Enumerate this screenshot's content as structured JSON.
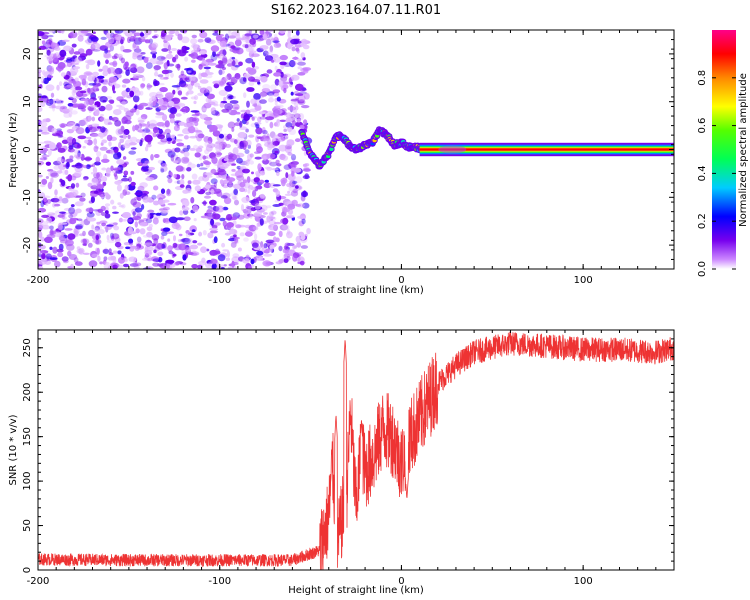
{
  "title": "S162.2023.164.07.11.R01",
  "chart_data": [
    {
      "type": "heatmap",
      "xlabel": "Height of straight line (km)",
      "ylabel": "Frequency (Hz)",
      "xlim": [
        -200,
        150
      ],
      "ylim": [
        -25,
        25
      ],
      "x_ticks": [
        -200,
        -100,
        0,
        100
      ],
      "y_ticks": [
        -20,
        -10,
        0,
        10,
        20
      ],
      "colorbar": {
        "label": "Normalized spectral amplitude",
        "range": [
          0,
          1
        ],
        "ticks": [
          "0.0",
          "0.2",
          "0.4",
          "0.6",
          "0.8"
        ],
        "colormap": "rainbow (white-violet-blue-cyan-green-yellow-red-magenta)"
      },
      "regions": [
        {
          "x": [
            -200,
            -52
          ],
          "description": "diffuse noise, amplitude 0.0-0.15"
        },
        {
          "x": [
            -55,
            10
          ],
          "description": "wandering narrow signal, amplitude 0.1-0.8"
        },
        {
          "x": [
            10,
            150
          ],
          "description": "steady narrow signal at 0 Hz, amplitude ~0.9"
        }
      ],
      "signal_trace": {
        "x": [
          -55,
          -50,
          -45,
          -40,
          -36,
          -32,
          -28,
          -24,
          -20,
          -16,
          -12,
          -8,
          -4,
          0,
          4,
          8,
          12,
          20,
          40,
          80,
          120,
          150
        ],
        "y": [
          3.5,
          -1,
          -3.5,
          -1,
          3,
          2.5,
          0.5,
          0,
          1,
          1.5,
          4,
          3,
          1,
          1.5,
          0.5,
          0.5,
          0,
          0,
          0,
          0,
          0,
          0
        ]
      }
    },
    {
      "type": "line",
      "xlabel": "Height of straight line (km)",
      "ylabel": "SNR (10 * v/v)",
      "xlim": [
        -200,
        150
      ],
      "ylim": [
        0,
        270
      ],
      "x_ticks": [
        -200,
        -100,
        0,
        100
      ],
      "y_ticks": [
        0,
        50,
        100,
        150,
        200,
        250
      ],
      "color": "#ee3333",
      "series": [
        {
          "x": [
            -200,
            -150,
            -100,
            -60,
            -45,
            -40,
            -38,
            -35,
            -30,
            -28,
            -25,
            -22,
            -20,
            -15,
            -10,
            -5,
            0,
            5,
            10,
            15,
            20,
            30,
            40,
            50,
            60,
            80,
            100,
            120,
            140,
            150
          ],
          "y": [
            12,
            11,
            11,
            11,
            22,
            60,
            120,
            30,
            90,
            180,
            70,
            140,
            110,
            130,
            160,
            150,
            120,
            150,
            170,
            190,
            210,
            230,
            245,
            250,
            255,
            252,
            248,
            248,
            245,
            250
          ]
        }
      ],
      "spikes": [
        {
          "x": -36,
          "y": 175
        },
        {
          "x": -31,
          "y": 260
        },
        {
          "x": -22,
          "y": 170
        },
        {
          "x": 3,
          "y": 75
        }
      ]
    }
  ]
}
